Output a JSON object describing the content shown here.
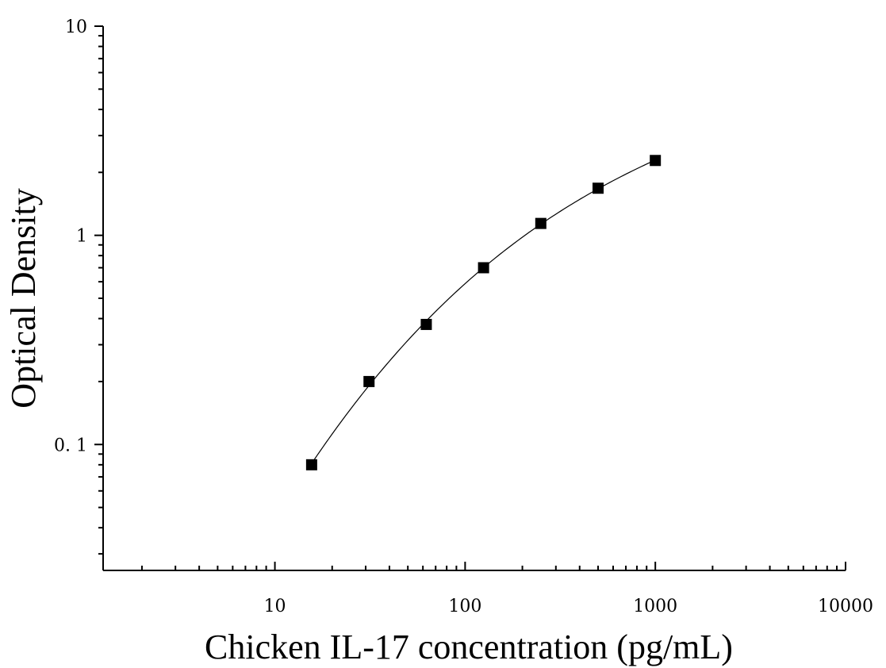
{
  "chart_data": {
    "type": "scatter",
    "title": "",
    "xlabel": "Chicken IL-17 concentration (pg/mL)",
    "ylabel": "Optical Density",
    "x_scale": "log",
    "y_scale": "log",
    "xlim": [
      1.25,
      10000
    ],
    "ylim": [
      0.025,
      10
    ],
    "x_ticks": [
      10,
      100,
      1000,
      10000
    ],
    "x_tick_labels": [
      "10",
      "100",
      "1000",
      "10000"
    ],
    "y_ticks": [
      0.1,
      1,
      10
    ],
    "y_tick_labels": [
      "0. 1",
      "1",
      "10"
    ],
    "grid": false,
    "legend": "none",
    "marker": "square",
    "marker_color": "#000000",
    "fit_curve": true,
    "series": [
      {
        "x": [
          15.6,
          31.25,
          62.5,
          125,
          250,
          500,
          1000
        ],
        "y": [
          0.08,
          0.2,
          0.375,
          0.7,
          1.14,
          1.68,
          2.28
        ]
      }
    ]
  }
}
